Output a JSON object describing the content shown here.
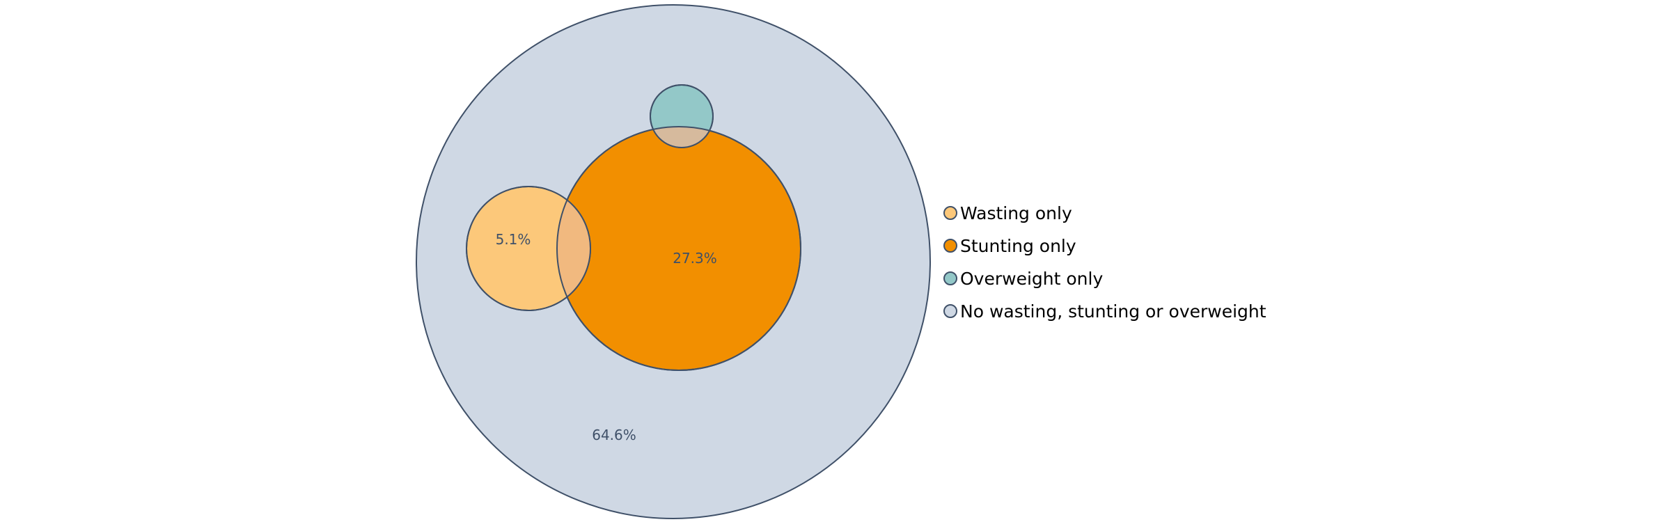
{
  "chart_data": {
    "type": "euler",
    "title": "",
    "series": [
      {
        "name": "Wasting only",
        "value": 5.1,
        "label": "5.1%",
        "color": "#fcc87a"
      },
      {
        "name": "Stunting only",
        "value": 27.3,
        "label": "27.3%",
        "color": "#f28f00"
      },
      {
        "name": "Overweight only",
        "value": null,
        "label": "",
        "color": "#93c8c8"
      },
      {
        "name": "No wasting, stunting or overweight",
        "value": 64.6,
        "label": "64.6%",
        "color": "#cfd8e4"
      }
    ],
    "overlap_colors": {
      "wasting_and_stunting": "#f1b97f",
      "overweight_and_stunting": "#d6ba9d"
    },
    "outline_color": "#3f5068",
    "legend_placement": "right"
  }
}
